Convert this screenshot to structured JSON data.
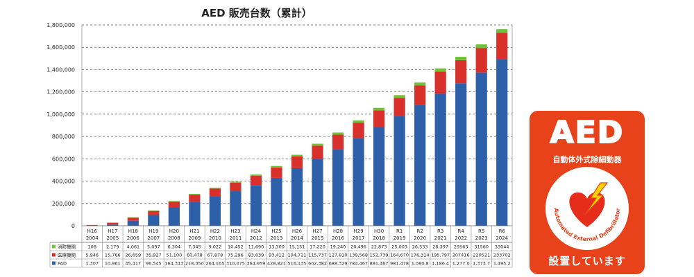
{
  "chart_data": {
    "type": "bar",
    "stacked": true,
    "title": "AED 販売台数（累計）",
    "y_ticks": [
      "0",
      "200,000",
      "400,000",
      "600,000",
      "800,000",
      "1,000,000",
      "1,200,000",
      "1,400,000",
      "1,600,000",
      "1,800,000"
    ],
    "ylim": [
      0,
      1800000
    ],
    "grid": true,
    "legend_placement": "table-left",
    "categories": [
      "H16",
      "H17",
      "H18",
      "H19",
      "H20",
      "H21",
      "H22",
      "H23",
      "H24",
      "H25",
      "H26",
      "H27",
      "H28",
      "H29",
      "H30",
      "R1",
      "R2",
      "R3",
      "R4",
      "R5",
      "R6"
    ],
    "years": [
      "2004",
      "2005",
      "2006",
      "2007",
      "2008",
      "2009",
      "2010",
      "2011",
      "2012",
      "2013",
      "2014",
      "2015",
      "2016",
      "2017",
      "2018",
      "2019",
      "2020",
      "2021",
      "2022",
      "2023",
      "2024"
    ],
    "series": [
      {
        "name": "PAD",
        "color": "#2e5fa9",
        "values": [
          1307,
          10961,
          45417,
          96545,
          164343,
          218050,
          264165,
          310075,
          364959,
          428821,
          516135,
          602382,
          688329,
          784467,
          881467,
          981478,
          1080800,
          1186400,
          1277000,
          1373700,
          1495200
        ],
        "labels": [
          "1,307",
          "10,961",
          "45,417",
          "96,545",
          "164,343",
          "218,050",
          "264,165",
          "310,075",
          "364,959",
          "428,821",
          "516,135",
          "602,382",
          "688,329",
          "784,467",
          "881,467",
          "981,478",
          "1,080.8",
          "1,186.4",
          "1,277.0",
          "1,373.7",
          "1,495.2"
        ]
      },
      {
        "name": "医療機関",
        "color": "#d8302a",
        "values": [
          5946,
          15766,
          26659,
          35927,
          51100,
          60478,
          67878,
          75296,
          83639,
          93412,
          104721,
          115737,
          127810,
          139568,
          152739,
          164670,
          176314,
          195797,
          207416,
          220521,
          233702
        ],
        "labels": [
          "5,946",
          "15,766",
          "26,659",
          "35,927",
          "51,100",
          "60,478",
          "67,878",
          "75,296",
          "83,639",
          "93,412",
          "104,721",
          "115,737",
          "127,810",
          "139,568",
          "152,739",
          "164,670",
          "176,314",
          "195,797",
          "207416",
          "220521",
          "233702"
        ]
      },
      {
        "name": "消防機関",
        "color": "#6fc23a",
        "values": [
          108,
          2179,
          4061,
          5097,
          6304,
          7345,
          9022,
          10452,
          11690,
          13300,
          15151,
          17220,
          19240,
          20496,
          22873,
          25003,
          26533,
          28397,
          29563,
          31560,
          33044
        ],
        "labels": [
          "108",
          "2,179",
          "4,061",
          "5,097",
          "6,304",
          "7,345",
          "9,022",
          "10,452",
          "11,690",
          "13,300",
          "15,151",
          "17,220",
          "19,240",
          "20,496",
          "22,873",
          "25,003",
          "26,533",
          "28,397",
          "29563",
          "31560",
          "33044"
        ]
      }
    ]
  },
  "sign": {
    "logo": "AED",
    "subtitle": "自動体外式除細動器",
    "ring_text": "Automated External Defibrillator",
    "caption": "設置しています"
  }
}
